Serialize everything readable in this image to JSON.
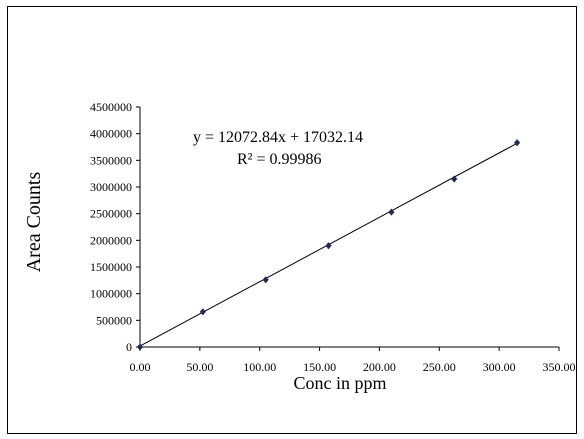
{
  "chart_data": {
    "type": "scatter",
    "xlabel": "Conc in ppm",
    "ylabel": "Area Counts",
    "xlim": [
      0,
      350
    ],
    "ylim": [
      0,
      4500000
    ],
    "x_ticks": [
      "0.00",
      "50.00",
      "100.00",
      "150.00",
      "200.00",
      "250.00",
      "300.00",
      "350.00"
    ],
    "y_ticks": [
      "0",
      "500000",
      "1000000",
      "1500000",
      "2000000",
      "2500000",
      "3000000",
      "3500000",
      "4000000",
      "4500000"
    ],
    "series": [
      {
        "x": [
          0,
          52.5,
          105,
          157.5,
          210,
          262.5,
          315
        ],
        "y": [
          0,
          660000,
          1260000,
          1900000,
          2530000,
          3150000,
          3830000
        ],
        "marker": "diamond",
        "color": "#1f2a5a"
      }
    ],
    "trendline": {
      "slope": 12072.84,
      "intercept": 17032.14,
      "color": "#000000"
    },
    "annotations": [
      "y = 12072.84x + 17032.14",
      "R² = 0.99986"
    ],
    "grid": false
  }
}
